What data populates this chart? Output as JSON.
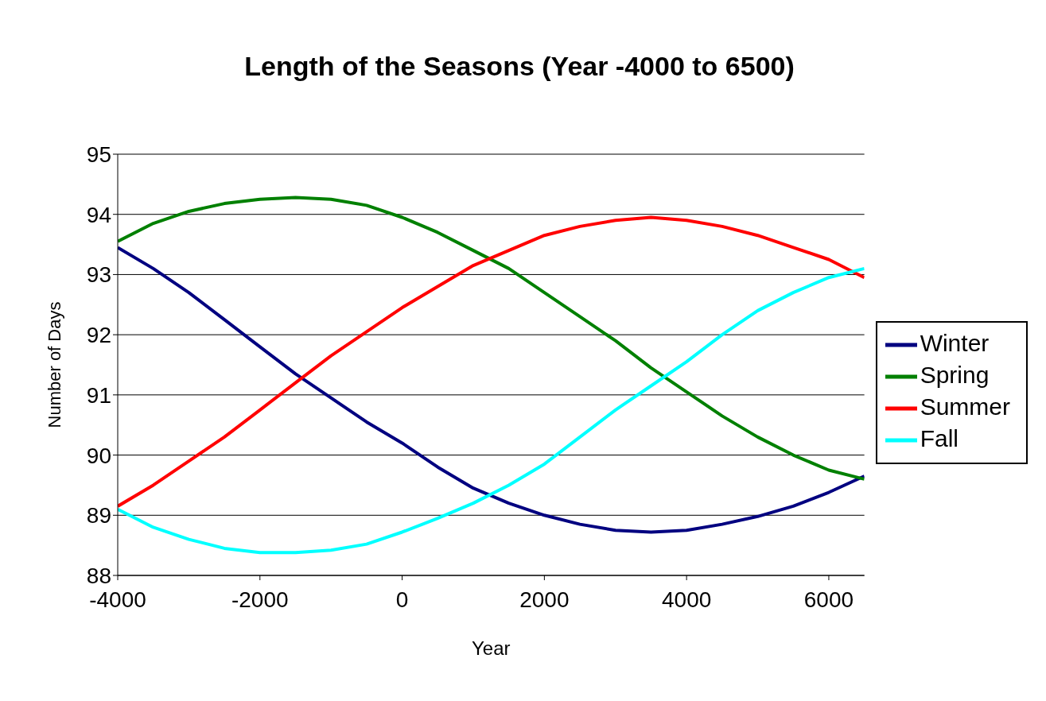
{
  "chart_data": {
    "type": "line",
    "title": "Length of the Seasons (Year -4000 to 6500)",
    "xlabel": "Year",
    "ylabel": "Number of Days",
    "x": [
      -4000,
      -3500,
      -3000,
      -2500,
      -2000,
      -1500,
      -1000,
      -500,
      0,
      500,
      1000,
      1500,
      2000,
      2500,
      3000,
      3500,
      4000,
      4500,
      5000,
      5500,
      6000,
      6500
    ],
    "series": [
      {
        "name": "Winter",
        "color": "#000080",
        "values": [
          93.45,
          93.1,
          92.7,
          92.25,
          91.8,
          91.35,
          90.95,
          90.55,
          90.2,
          89.8,
          89.45,
          89.2,
          89.0,
          88.85,
          88.75,
          88.72,
          88.75,
          88.85,
          88.98,
          89.15,
          89.38,
          89.65
        ]
      },
      {
        "name": "Spring",
        "color": "#008000",
        "values": [
          93.55,
          93.85,
          94.05,
          94.18,
          94.25,
          94.28,
          94.25,
          94.15,
          93.95,
          93.7,
          93.4,
          93.1,
          92.7,
          92.3,
          91.9,
          91.45,
          91.05,
          90.65,
          90.3,
          90.0,
          89.75,
          89.6
        ]
      },
      {
        "name": "Summer",
        "color": "#ff0000",
        "values": [
          89.15,
          89.5,
          89.9,
          90.3,
          90.75,
          91.2,
          91.65,
          92.05,
          92.45,
          92.8,
          93.15,
          93.4,
          93.65,
          93.8,
          93.9,
          93.95,
          93.9,
          93.8,
          93.65,
          93.45,
          93.25,
          92.95
        ]
      },
      {
        "name": "Fall",
        "color": "#00ffff",
        "values": [
          89.1,
          88.8,
          88.6,
          88.45,
          88.38,
          88.38,
          88.42,
          88.52,
          88.72,
          88.95,
          89.2,
          89.5,
          89.85,
          90.3,
          90.75,
          91.15,
          91.55,
          92.0,
          92.4,
          92.7,
          92.95,
          93.1
        ]
      }
    ],
    "xlim": [
      -4000,
      6500
    ],
    "xticks": [
      -4000,
      -2000,
      0,
      2000,
      4000,
      6000
    ],
    "ylim": [
      88,
      95
    ],
    "yticks": [
      88,
      89,
      90,
      91,
      92,
      93,
      94,
      95
    ],
    "grid": "y",
    "legend": "right",
    "marker": "none",
    "line_style": "solid"
  }
}
